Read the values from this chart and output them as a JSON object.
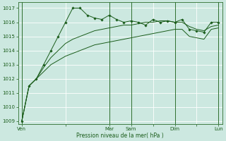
{
  "background_color": "#cce8e0",
  "grid_color": "#b0d8d0",
  "line_color": "#1a5c1a",
  "marker_color": "#1a5c1a",
  "xlabel": "Pression niveau de la mer( hPa )",
  "ylim": [
    1008.8,
    1017.4
  ],
  "yticks": [
    1009,
    1010,
    1011,
    1012,
    1013,
    1014,
    1015,
    1016,
    1017
  ],
  "xtick_labels": [
    "Ven",
    "",
    "Mar",
    "Sam",
    "",
    "Dim",
    "",
    "Lun"
  ],
  "xtick_positions": [
    0,
    6,
    12,
    15,
    18,
    21,
    24,
    27
  ],
  "vline_positions": [
    0,
    12,
    15,
    21,
    27
  ],
  "series_marked": [
    1009,
    1011.5,
    1012,
    1013,
    1014,
    1015,
    1016,
    1017,
    1017,
    1016.5,
    1016.3,
    1016.2,
    1016.5,
    1016.2,
    1016.0,
    1016.1,
    1016.0,
    1015.8,
    1016.2,
    1016.0,
    1016.1,
    1016.0,
    1016.2,
    1015.5,
    1015.4,
    1015.3,
    1016.0,
    1016.0
  ],
  "series2": [
    1009,
    1011.5,
    1012,
    1012.8,
    1013.5,
    1014.0,
    1014.5,
    1014.8,
    1015.0,
    1015.2,
    1015.4,
    1015.5,
    1015.6,
    1015.7,
    1015.8,
    1015.8,
    1015.9,
    1016.0,
    1016.0,
    1016.1,
    1016.1,
    1016.0,
    1016.0,
    1015.7,
    1015.5,
    1015.4,
    1015.7,
    1015.8
  ],
  "series3": [
    1009,
    1011.5,
    1012,
    1012.5,
    1013.0,
    1013.3,
    1013.6,
    1013.8,
    1014.0,
    1014.2,
    1014.4,
    1014.5,
    1014.6,
    1014.7,
    1014.8,
    1014.9,
    1015.0,
    1015.1,
    1015.2,
    1015.3,
    1015.4,
    1015.5,
    1015.5,
    1015.0,
    1014.9,
    1014.8,
    1015.5,
    1015.6
  ],
  "n_points": 28
}
